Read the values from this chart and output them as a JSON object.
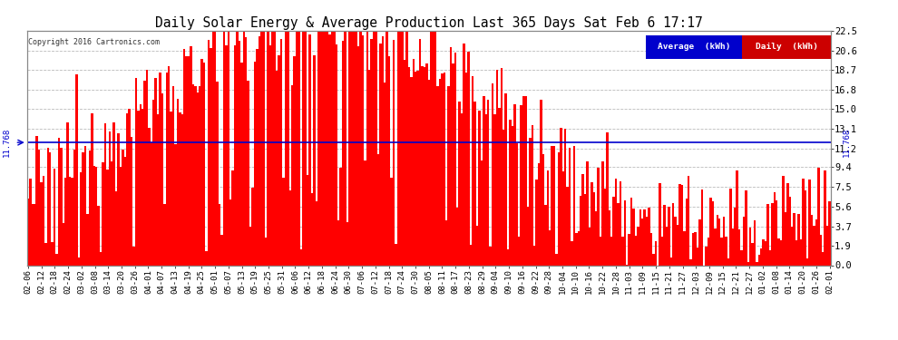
{
  "title": "Daily Solar Energy & Average Production Last 365 Days Sat Feb 6 17:17",
  "copyright": "Copyright 2016 Cartronics.com",
  "average_value": 11.768,
  "bar_color": "#ff0000",
  "average_line_color": "#0000cd",
  "background_color": "#ffffff",
  "plot_bg_color": "#ffffff",
  "ylim": [
    0.0,
    22.5
  ],
  "yticks": [
    0.0,
    1.9,
    3.7,
    5.6,
    7.5,
    9.4,
    11.2,
    13.1,
    15.0,
    16.8,
    18.7,
    20.6,
    22.5
  ],
  "legend_avg_color": "#0000cc",
  "legend_daily_color": "#cc0000",
  "grid_color": "#bbbbbb",
  "x_tick_labels": [
    "02-06",
    "02-12",
    "02-18",
    "02-24",
    "03-02",
    "03-08",
    "03-14",
    "03-20",
    "03-26",
    "04-01",
    "04-07",
    "04-13",
    "04-19",
    "04-25",
    "05-01",
    "05-07",
    "05-13",
    "05-19",
    "05-25",
    "05-31",
    "06-06",
    "06-12",
    "06-18",
    "06-24",
    "06-30",
    "07-06",
    "07-12",
    "07-18",
    "07-24",
    "07-30",
    "08-05",
    "08-11",
    "08-17",
    "08-23",
    "08-29",
    "09-04",
    "09-10",
    "09-16",
    "09-22",
    "09-28",
    "10-04",
    "10-10",
    "10-16",
    "10-22",
    "10-28",
    "11-03",
    "11-09",
    "11-15",
    "11-21",
    "11-27",
    "12-03",
    "12-09",
    "12-15",
    "12-21",
    "12-27",
    "01-02",
    "01-08",
    "01-14",
    "01-20",
    "01-26",
    "02-01"
  ],
  "num_days": 365,
  "figsize": [
    9.9,
    3.75
  ],
  "dpi": 100
}
